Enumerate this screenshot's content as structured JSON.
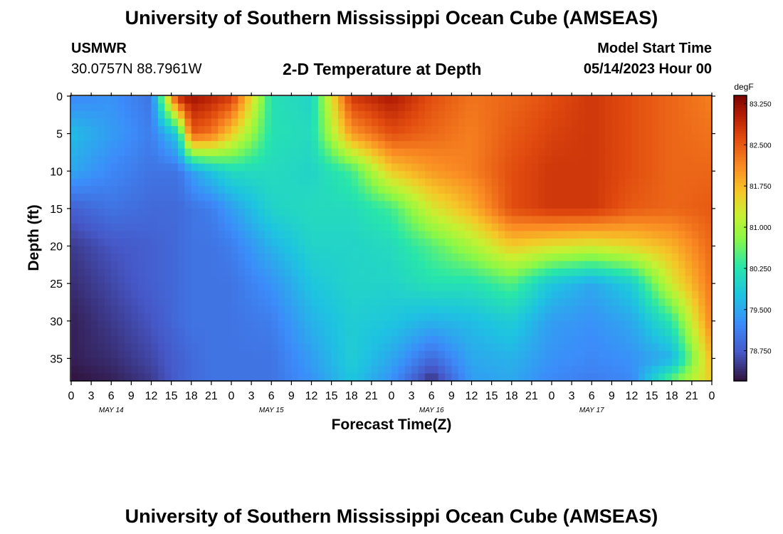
{
  "header": {
    "title": "University of Southern Mississippi Ocean Cube (AMSEAS)",
    "station_id": "USMWR",
    "station_coords": "30.0757N  88.7961W",
    "product": "2-D Temperature at Depth",
    "model_start_label": "Model Start Time",
    "model_start_value": "05/14/2023 Hour 00",
    "repeated_title": "University of Southern Mississippi Ocean Cube (AMSEAS)"
  },
  "chart_data": {
    "type": "heatmap",
    "title": "2-D Temperature at Depth",
    "xlabel": "Forecast Time(Z)",
    "ylabel": "Depth (ft)",
    "x_ticks": [
      "0",
      "3",
      "6",
      "9",
      "12",
      "15",
      "18",
      "21",
      "0",
      "3",
      "6",
      "9",
      "12",
      "15",
      "18",
      "21",
      "0",
      "3",
      "6",
      "9",
      "12",
      "15",
      "18",
      "21",
      "0",
      "3",
      "6",
      "9",
      "12",
      "15",
      "18",
      "21",
      "0"
    ],
    "x_range_hours": [
      0,
      96
    ],
    "date_labels": [
      {
        "label": "MAY 14",
        "hour": 6
      },
      {
        "label": "MAY 15",
        "hour": 30
      },
      {
        "label": "MAY 16",
        "hour": 54
      },
      {
        "label": "MAY 17",
        "hour": 78
      }
    ],
    "y_ticks": [
      0,
      5,
      10,
      15,
      20,
      25,
      30,
      35
    ],
    "y_range_ft": [
      0,
      38
    ],
    "colorbar": {
      "unit": "degF",
      "ticks": [
        "83.250",
        "82.500",
        "81.750",
        "81.000",
        "80.250",
        "79.500",
        "78.750"
      ],
      "range": [
        78.2,
        83.4
      ]
    },
    "time_hours": [
      0,
      6,
      12,
      16,
      18,
      21,
      24,
      30,
      36,
      42,
      48,
      54,
      60,
      66,
      72,
      78,
      84,
      90,
      96
    ],
    "depths_ft": [
      0,
      5,
      10,
      15,
      20,
      25,
      30,
      35,
      38
    ],
    "values": [
      [
        79.2,
        79.3,
        79.0,
        83.0,
        83.2,
        83.0,
        82.8,
        80.2,
        80.0,
        82.8,
        83.1,
        82.6,
        82.3,
        82.4,
        82.6,
        82.8,
        82.6,
        82.4,
        82.2
      ],
      [
        79.7,
        79.4,
        79.1,
        79.9,
        82.5,
        82.3,
        81.6,
        80.2,
        80.1,
        82.0,
        82.6,
        82.4,
        82.2,
        82.5,
        82.7,
        82.8,
        82.6,
        82.4,
        82.3
      ],
      [
        79.5,
        79.2,
        79.0,
        79.0,
        79.4,
        79.8,
        80.1,
        80.1,
        80.0,
        80.4,
        81.6,
        82.0,
        82.2,
        82.6,
        82.8,
        82.8,
        82.6,
        82.4,
        82.4
      ],
      [
        78.8,
        79.0,
        78.9,
        78.9,
        79.0,
        79.1,
        79.4,
        80.0,
        80.1,
        80.1,
        80.4,
        81.3,
        81.8,
        82.6,
        82.8,
        82.8,
        82.5,
        82.4,
        82.5
      ],
      [
        78.5,
        78.7,
        78.8,
        78.9,
        79.0,
        79.0,
        79.1,
        79.6,
        80.0,
        80.0,
        80.1,
        80.5,
        81.0,
        81.6,
        81.4,
        81.3,
        81.5,
        81.8,
        82.4
      ],
      [
        78.4,
        78.6,
        78.8,
        78.9,
        79.0,
        79.0,
        79.0,
        79.3,
        79.8,
        80.0,
        80.0,
        80.2,
        80.2,
        80.5,
        79.8,
        79.5,
        79.9,
        81.3,
        82.3
      ],
      [
        78.3,
        78.5,
        78.7,
        78.9,
        79.0,
        79.0,
        79.0,
        79.1,
        79.6,
        79.9,
        79.8,
        79.6,
        79.7,
        79.9,
        79.4,
        79.3,
        79.5,
        80.3,
        82.2
      ],
      [
        78.3,
        78.4,
        78.6,
        78.8,
        78.9,
        79.0,
        79.0,
        79.0,
        79.4,
        79.9,
        79.5,
        78.9,
        79.5,
        79.6,
        79.3,
        79.2,
        79.3,
        79.6,
        81.8
      ],
      [
        78.2,
        78.3,
        78.5,
        78.8,
        78.9,
        79.0,
        79.0,
        79.0,
        79.3,
        79.8,
        79.3,
        78.4,
        79.4,
        79.5,
        79.2,
        79.1,
        79.2,
        80.6,
        81.6
      ]
    ]
  }
}
